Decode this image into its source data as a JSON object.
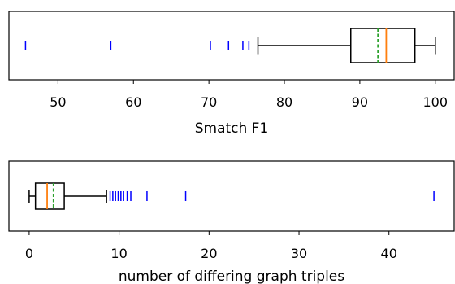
{
  "chart_data": [
    {
      "type": "boxplot",
      "orientation": "horizontal",
      "xlabel": "Smatch F1",
      "xlim": [
        43.5,
        102.5
      ],
      "xticks": [
        50,
        60,
        70,
        80,
        90,
        100
      ],
      "xtick_labels": [
        "50",
        "60",
        "70",
        "80",
        "90",
        "100"
      ],
      "box": {
        "whisker_low": 76.5,
        "q1": 88.8,
        "median": 93.5,
        "mean": 92.4,
        "q3": 97.3,
        "whisker_high": 100
      },
      "outliers": [
        45.7,
        57.0,
        70.2,
        72.6,
        74.5,
        75.3
      ],
      "colors": {
        "box": "#000000",
        "median": "#ff7f0e",
        "mean": "#2ca02c",
        "outliers": "#0000ff"
      }
    },
    {
      "type": "boxplot",
      "orientation": "horizontal",
      "xlabel": "number of differing graph triples",
      "xlim": [
        -2.25,
        47.25
      ],
      "xticks": [
        0,
        10,
        20,
        30,
        40
      ],
      "xtick_labels": [
        "0",
        "10",
        "20",
        "30",
        "40"
      ],
      "box": {
        "whisker_low": 0,
        "q1": 0.7,
        "median": 2.0,
        "mean": 2.7,
        "q3": 3.9,
        "whisker_high": 8.6
      },
      "outliers": [
        9.0,
        9.3,
        9.6,
        9.9,
        10.2,
        10.5,
        10.9,
        11.3,
        13.1,
        17.4,
        45.0
      ],
      "colors": {
        "box": "#000000",
        "median": "#ff7f0e",
        "mean": "#2ca02c",
        "outliers": "#0000ff"
      }
    }
  ]
}
